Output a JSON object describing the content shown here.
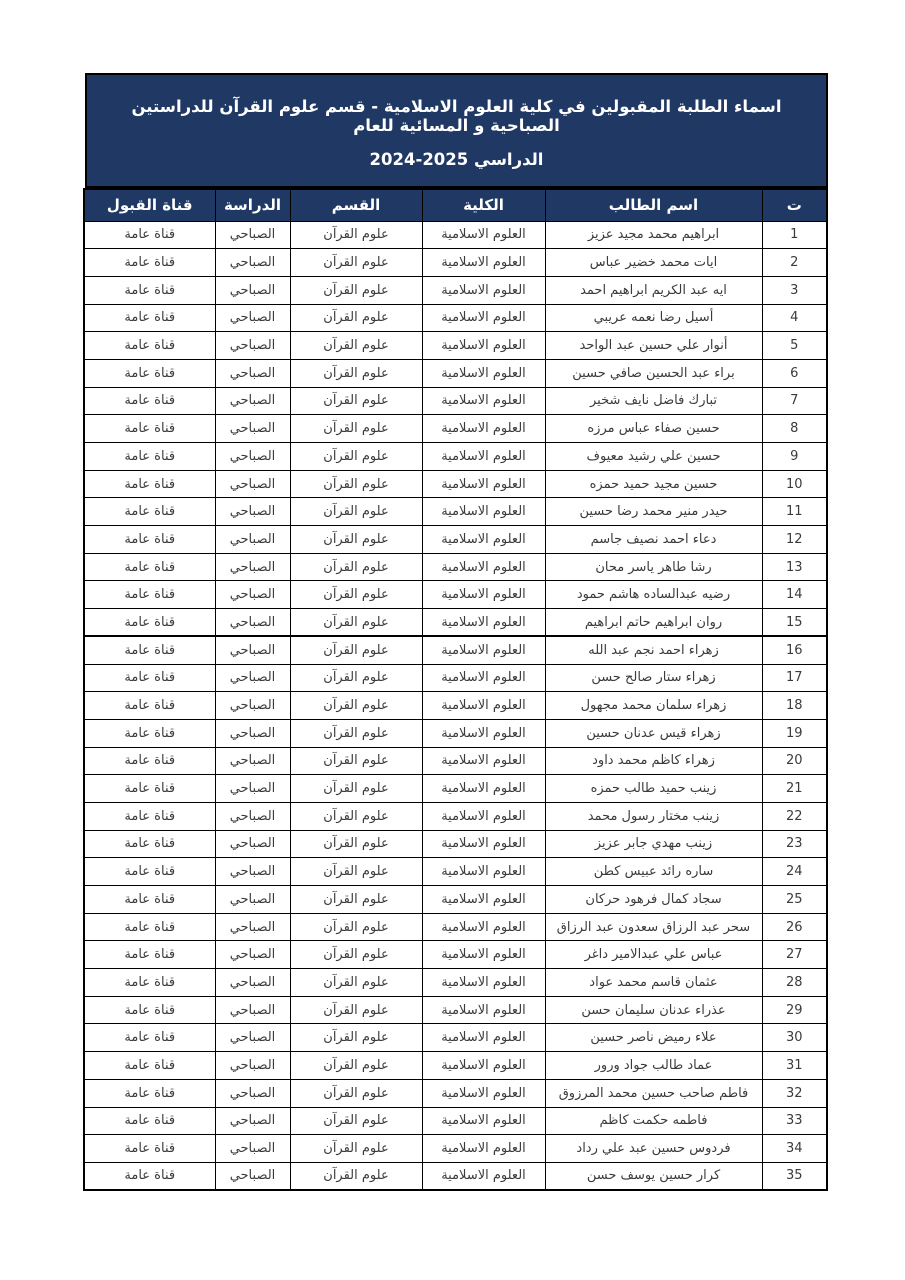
{
  "colors": {
    "header_bg": "#1f3864",
    "header_text": "#ffffff",
    "border": "#000000",
    "cell_text": "#3b3b3b",
    "cell_bg": "#ffffff",
    "page_bg": "#ffffff"
  },
  "title": {
    "line1": "اسماء الطلبة المقبولين في كلية العلوم الاسلامية - قسم علوم القرآن للدراستين الصباحية و المسائية للعام",
    "line2": "الدراسي 2025-2024"
  },
  "table": {
    "columns": [
      "ت",
      "اسم الطالب",
      "الكلية",
      "القسم",
      "الدراسة",
      "قناة القبول"
    ],
    "rows": [
      {
        "no": "1",
        "name": "ابراهيم محمد مجيد عزيز",
        "college": "العلوم الاسلامية",
        "department": "علوم القرآن",
        "study": "الصباحي",
        "admission_channel": "قناة عامة"
      },
      {
        "no": "2",
        "name": "ايات محمد خضير عباس",
        "college": "العلوم الاسلامية",
        "department": "علوم القرآن",
        "study": "الصباحي",
        "admission_channel": "قناة عامة"
      },
      {
        "no": "3",
        "name": "ايه عبد الكريم ابراهيم احمد",
        "college": "العلوم الاسلامية",
        "department": "علوم القرآن",
        "study": "الصباحي",
        "admission_channel": "قناة عامة"
      },
      {
        "no": "4",
        "name": "أسيل رضا نعمه عريبي",
        "college": "العلوم الاسلامية",
        "department": "علوم القرآن",
        "study": "الصباحي",
        "admission_channel": "قناة عامة"
      },
      {
        "no": "5",
        "name": "أنوار علي حسين عبد الواحد",
        "college": "العلوم الاسلامية",
        "department": "علوم القرآن",
        "study": "الصباحي",
        "admission_channel": "قناة عامة"
      },
      {
        "no": "6",
        "name": "براء عبد الحسين صافي حسين",
        "college": "العلوم الاسلامية",
        "department": "علوم القرآن",
        "study": "الصباحي",
        "admission_channel": "قناة عامة"
      },
      {
        "no": "7",
        "name": "تبارك فاضل نايف شخير",
        "college": "العلوم الاسلامية",
        "department": "علوم القرآن",
        "study": "الصباحي",
        "admission_channel": "قناة عامة"
      },
      {
        "no": "8",
        "name": "حسين صفاء عباس مرزه",
        "college": "العلوم الاسلامية",
        "department": "علوم القرآن",
        "study": "الصباحي",
        "admission_channel": "قناة عامة"
      },
      {
        "no": "9",
        "name": "حسين علي رشيد معيوف",
        "college": "العلوم الاسلامية",
        "department": "علوم القرآن",
        "study": "الصباحي",
        "admission_channel": "قناة عامة"
      },
      {
        "no": "10",
        "name": "حسين مجيد حميد حمزه",
        "college": "العلوم الاسلامية",
        "department": "علوم القرآن",
        "study": "الصباحي",
        "admission_channel": "قناة عامة"
      },
      {
        "no": "11",
        "name": "حيدر منير محمد رضا حسين",
        "college": "العلوم الاسلامية",
        "department": "علوم القرآن",
        "study": "الصباحي",
        "admission_channel": "قناة عامة"
      },
      {
        "no": "12",
        "name": "دعاء احمد نصيف جاسم",
        "college": "العلوم الاسلامية",
        "department": "علوم القرآن",
        "study": "الصباحي",
        "admission_channel": "قناة عامة"
      },
      {
        "no": "13",
        "name": "رشا طاهر ياسر محان",
        "college": "العلوم الاسلامية",
        "department": "علوم القرآن",
        "study": "الصباحي",
        "admission_channel": "قناة عامة"
      },
      {
        "no": "14",
        "name": "رضيه عبدالساده هاشم حمود",
        "college": "العلوم الاسلامية",
        "department": "علوم القرآن",
        "study": "الصباحي",
        "admission_channel": "قناة عامة"
      },
      {
        "no": "15",
        "name": "روان ابراهيم حاتم ابراهيم",
        "college": "العلوم الاسلامية",
        "department": "علوم القرآن",
        "study": "الصباحي",
        "admission_channel": "قناة عامة"
      },
      {
        "no": "16",
        "name": "زهراء احمد نجم عبد الله",
        "college": "العلوم الاسلامية",
        "department": "علوم القرآن",
        "study": "الصباحي",
        "admission_channel": "قناة عامة"
      },
      {
        "no": "17",
        "name": "زهراء ستار صالح حسن",
        "college": "العلوم الاسلامية",
        "department": "علوم القرآن",
        "study": "الصباحي",
        "admission_channel": "قناة عامة"
      },
      {
        "no": "18",
        "name": "زهراء سلمان محمد مجهول",
        "college": "العلوم الاسلامية",
        "department": "علوم القرآن",
        "study": "الصباحي",
        "admission_channel": "قناة عامة"
      },
      {
        "no": "19",
        "name": "زهراء قيس عدنان حسين",
        "college": "العلوم الاسلامية",
        "department": "علوم القرآن",
        "study": "الصباحي",
        "admission_channel": "قناة عامة"
      },
      {
        "no": "20",
        "name": "زهراء كاظم محمد داود",
        "college": "العلوم الاسلامية",
        "department": "علوم القرآن",
        "study": "الصباحي",
        "admission_channel": "قناة عامة"
      },
      {
        "no": "21",
        "name": "زينب حميد طالب حمزه",
        "college": "العلوم الاسلامية",
        "department": "علوم القرآن",
        "study": "الصباحي",
        "admission_channel": "قناة عامة"
      },
      {
        "no": "22",
        "name": "زينب مختار رسول محمد",
        "college": "العلوم الاسلامية",
        "department": "علوم القرآن",
        "study": "الصباحي",
        "admission_channel": "قناة عامة"
      },
      {
        "no": "23",
        "name": "زينب مهدي جابر عزيز",
        "college": "العلوم الاسلامية",
        "department": "علوم القرآن",
        "study": "الصباحي",
        "admission_channel": "قناة عامة"
      },
      {
        "no": "24",
        "name": "ساره رائد عبيس كطن",
        "college": "العلوم الاسلامية",
        "department": "علوم القرآن",
        "study": "الصباحي",
        "admission_channel": "قناة عامة"
      },
      {
        "no": "25",
        "name": "سجاد كمال فرهود حركان",
        "college": "العلوم الاسلامية",
        "department": "علوم القرآن",
        "study": "الصباحي",
        "admission_channel": "قناة عامة"
      },
      {
        "no": "26",
        "name": "سحر عبد الرزاق سعدون عبد الرزاق",
        "college": "العلوم الاسلامية",
        "department": "علوم القرآن",
        "study": "الصباحي",
        "admission_channel": "قناة عامة"
      },
      {
        "no": "27",
        "name": "عباس علي عبدالامير داغر",
        "college": "العلوم الاسلامية",
        "department": "علوم القرآن",
        "study": "الصباحي",
        "admission_channel": "قناة عامة"
      },
      {
        "no": "28",
        "name": "عثمان قاسم محمد عواد",
        "college": "العلوم الاسلامية",
        "department": "علوم القرآن",
        "study": "الصباحي",
        "admission_channel": "قناة عامة"
      },
      {
        "no": "29",
        "name": "عذراء عدنان سليمان حسن",
        "college": "العلوم الاسلامية",
        "department": "علوم القرآن",
        "study": "الصباحي",
        "admission_channel": "قناة عامة"
      },
      {
        "no": "30",
        "name": "علاء رميض ناصر حسين",
        "college": "العلوم الاسلامية",
        "department": "علوم القرآن",
        "study": "الصباحي",
        "admission_channel": "قناة عامة"
      },
      {
        "no": "31",
        "name": "عماد طالب جواد ورور",
        "college": "العلوم الاسلامية",
        "department": "علوم القرآن",
        "study": "الصباحي",
        "admission_channel": "قناة عامة"
      },
      {
        "no": "32",
        "name": "فاطم صاحب حسين محمد المرزوق",
        "college": "العلوم الاسلامية",
        "department": "علوم القرآن",
        "study": "الصباحي",
        "admission_channel": "قناة عامة"
      },
      {
        "no": "33",
        "name": "فاطمه حكمت كاظم",
        "college": "العلوم الاسلامية",
        "department": "علوم القرآن",
        "study": "الصباحي",
        "admission_channel": "قناة عامة"
      },
      {
        "no": "34",
        "name": "فردوس حسين عبد علي رداد",
        "college": "العلوم الاسلامية",
        "department": "علوم القرآن",
        "study": "الصباحي",
        "admission_channel": "قناة عامة"
      },
      {
        "no": "35",
        "name": "كرار حسين يوسف حسن",
        "college": "العلوم الاسلامية",
        "department": "علوم القرآن",
        "study": "الصباحي",
        "admission_channel": "قناة عامة"
      }
    ]
  }
}
